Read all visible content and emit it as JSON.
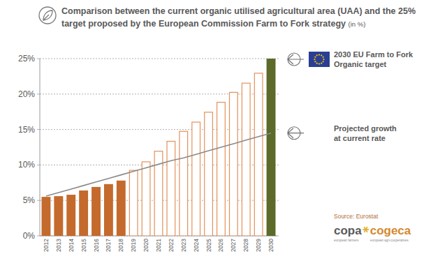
{
  "chart_data": {
    "type": "bar",
    "title": [
      "Comparison between the current organic utilised agricultural area (UAA) and the 25%",
      "target proposed by  the European Commission Farm to Fork strategy"
    ],
    "units_note": "(in %)",
    "categories": [
      "2012",
      "2013",
      "2014",
      "2015",
      "2016",
      "2017",
      "2018",
      "2019",
      "2020",
      "2021",
      "2022",
      "2023",
      "2024",
      "2025",
      "2026",
      "2027",
      "2028",
      "2029",
      "2030"
    ],
    "series": [
      {
        "type": "bar",
        "color": "#c46a2c",
        "values": [
          5.5,
          5.6,
          5.8,
          6.4,
          6.9,
          7.3,
          7.8,
          null,
          null,
          null,
          null,
          null,
          null,
          null,
          null,
          null,
          null,
          null,
          null
        ]
      },
      {
        "type": "bar",
        "color": "#e3915a",
        "line_style": "outline",
        "values": [
          null,
          null,
          null,
          null,
          null,
          null,
          null,
          9.3,
          10.5,
          12.0,
          13.4,
          14.8,
          16.1,
          17.5,
          18.9,
          20.3,
          21.6,
          23.0,
          null
        ]
      },
      {
        "name": "2030 EU Farm to Fork Organic target",
        "type": "bar",
        "color": "#5c6a2a",
        "values": [
          null,
          null,
          null,
          null,
          null,
          null,
          null,
          null,
          null,
          null,
          null,
          null,
          null,
          null,
          null,
          null,
          null,
          null,
          25
        ]
      },
      {
        "name": "Projected growth at current rate",
        "type": "line",
        "color": "#8a8a8a",
        "values": [
          5.6,
          6.1,
          6.6,
          7.1,
          7.6,
          8.1,
          8.6,
          9.1,
          9.6,
          10.1,
          10.6,
          11.0,
          11.5,
          12.0,
          12.5,
          13.0,
          13.5,
          14.0,
          14.5
        ]
      }
    ],
    "ylim": [
      0,
      25
    ],
    "yticks": [
      {
        "value": 0,
        "label": "0%"
      },
      {
        "value": 5,
        "label": "5%"
      },
      {
        "value": 10,
        "label": "10%"
      },
      {
        "value": 15,
        "label": "15%"
      },
      {
        "value": 20,
        "label": "20%"
      },
      {
        "value": 25,
        "label": "25%"
      }
    ],
    "grid": true,
    "source": "Source: Eurostat",
    "logo": [
      "copa",
      "cogeca"
    ],
    "logo_subtitles": [
      "european farmers",
      "european agri-cooperatives"
    ]
  }
}
